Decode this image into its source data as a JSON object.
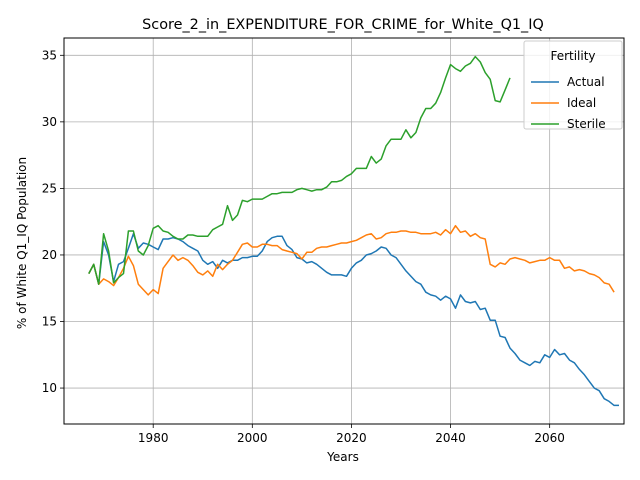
{
  "chart_data": {
    "type": "line",
    "title": "Score_2_in_EXPENDITURE_FOR_CRIME_for_White_Q1_IQ",
    "xlabel": "Years",
    "ylabel": "% of White Q1_IQ Population",
    "xlim": [
      1962,
      2075
    ],
    "ylim": [
      7.3,
      36.3
    ],
    "xticks": [
      1980,
      2000,
      2020,
      2040,
      2060
    ],
    "yticks": [
      10,
      15,
      20,
      25,
      30,
      35
    ],
    "grid": true,
    "legend": {
      "title": "Fertility",
      "position": "top-right"
    },
    "series": [
      {
        "name": "Actual",
        "color": "#1f77b4",
        "points": [
          [
            1967,
            18.6
          ],
          [
            1968,
            19.3
          ],
          [
            1969,
            17.8
          ],
          [
            1970,
            21.0
          ],
          [
            1971,
            20.0
          ],
          [
            1972,
            18.0
          ],
          [
            1973,
            19.3
          ],
          [
            1974,
            19.5
          ],
          [
            1975,
            20.5
          ],
          [
            1976,
            21.6
          ],
          [
            1977,
            20.5
          ],
          [
            1978,
            20.9
          ],
          [
            1979,
            20.8
          ],
          [
            1980,
            20.6
          ],
          [
            1981,
            20.4
          ],
          [
            1982,
            21.2
          ],
          [
            1983,
            21.2
          ],
          [
            1984,
            21.3
          ],
          [
            1985,
            21.2
          ],
          [
            1986,
            21.0
          ],
          [
            1987,
            20.7
          ],
          [
            1988,
            20.5
          ],
          [
            1989,
            20.3
          ],
          [
            1990,
            19.6
          ],
          [
            1991,
            19.3
          ],
          [
            1992,
            19.5
          ],
          [
            1993,
            19.0
          ],
          [
            1994,
            19.6
          ],
          [
            1995,
            19.4
          ],
          [
            1996,
            19.6
          ],
          [
            1997,
            19.6
          ],
          [
            1998,
            19.8
          ],
          [
            1999,
            19.8
          ],
          [
            2000,
            19.9
          ],
          [
            2001,
            19.9
          ],
          [
            2002,
            20.3
          ],
          [
            2003,
            21.0
          ],
          [
            2004,
            21.3
          ],
          [
            2005,
            21.4
          ],
          [
            2006,
            21.4
          ],
          [
            2007,
            20.7
          ],
          [
            2008,
            20.4
          ],
          [
            2009,
            19.8
          ],
          [
            2010,
            19.7
          ],
          [
            2011,
            19.4
          ],
          [
            2012,
            19.5
          ],
          [
            2013,
            19.3
          ],
          [
            2014,
            19.0
          ],
          [
            2015,
            18.7
          ],
          [
            2016,
            18.5
          ],
          [
            2017,
            18.5
          ],
          [
            2018,
            18.5
          ],
          [
            2019,
            18.4
          ],
          [
            2020,
            19.0
          ],
          [
            2021,
            19.4
          ],
          [
            2022,
            19.6
          ],
          [
            2023,
            20.0
          ],
          [
            2024,
            20.1
          ],
          [
            2025,
            20.3
          ],
          [
            2026,
            20.6
          ],
          [
            2027,
            20.5
          ],
          [
            2028,
            20.0
          ],
          [
            2029,
            19.8
          ],
          [
            2030,
            19.3
          ],
          [
            2031,
            18.8
          ],
          [
            2032,
            18.4
          ],
          [
            2033,
            18.0
          ],
          [
            2034,
            17.8
          ],
          [
            2035,
            17.2
          ],
          [
            2036,
            17.0
          ],
          [
            2037,
            16.9
          ],
          [
            2038,
            16.6
          ],
          [
            2039,
            16.9
          ],
          [
            2040,
            16.7
          ],
          [
            2041,
            16.0
          ],
          [
            2042,
            17.0
          ],
          [
            2043,
            16.5
          ],
          [
            2044,
            16.4
          ],
          [
            2045,
            16.5
          ],
          [
            2046,
            15.9
          ],
          [
            2047,
            16.0
          ],
          [
            2048,
            15.1
          ],
          [
            2049,
            15.1
          ],
          [
            2050,
            13.9
          ],
          [
            2051,
            13.8
          ],
          [
            2052,
            13.0
          ],
          [
            2053,
            12.6
          ],
          [
            2054,
            12.1
          ],
          [
            2055,
            11.9
          ],
          [
            2056,
            11.7
          ],
          [
            2057,
            12.0
          ],
          [
            2058,
            11.9
          ],
          [
            2059,
            12.5
          ],
          [
            2060,
            12.3
          ],
          [
            2061,
            12.9
          ],
          [
            2062,
            12.5
          ],
          [
            2063,
            12.6
          ],
          [
            2064,
            12.1
          ],
          [
            2065,
            11.9
          ],
          [
            2066,
            11.4
          ],
          [
            2067,
            11.0
          ],
          [
            2068,
            10.5
          ],
          [
            2069,
            10.0
          ],
          [
            2070,
            9.8
          ],
          [
            2071,
            9.2
          ],
          [
            2072,
            9.0
          ],
          [
            2073,
            8.7
          ],
          [
            2074,
            8.7
          ]
        ]
      },
      {
        "name": "Ideal",
        "color": "#ff7f0e",
        "points": [
          [
            1967,
            18.6
          ],
          [
            1968,
            19.3
          ],
          [
            1969,
            17.8
          ],
          [
            1970,
            18.2
          ],
          [
            1971,
            18.0
          ],
          [
            1972,
            17.7
          ],
          [
            1973,
            18.3
          ],
          [
            1974,
            19.0
          ],
          [
            1975,
            19.9
          ],
          [
            1976,
            19.2
          ],
          [
            1977,
            17.8
          ],
          [
            1978,
            17.4
          ],
          [
            1979,
            17.0
          ],
          [
            1980,
            17.4
          ],
          [
            1981,
            17.1
          ],
          [
            1982,
            19.0
          ],
          [
            1983,
            19.5
          ],
          [
            1984,
            20.0
          ],
          [
            1985,
            19.6
          ],
          [
            1986,
            19.8
          ],
          [
            1987,
            19.6
          ],
          [
            1988,
            19.2
          ],
          [
            1989,
            18.7
          ],
          [
            1990,
            18.5
          ],
          [
            1991,
            18.8
          ],
          [
            1992,
            18.4
          ],
          [
            1993,
            19.3
          ],
          [
            1994,
            18.9
          ],
          [
            1995,
            19.3
          ],
          [
            1996,
            19.6
          ],
          [
            1997,
            20.2
          ],
          [
            1998,
            20.8
          ],
          [
            1999,
            20.9
          ],
          [
            2000,
            20.6
          ],
          [
            2001,
            20.6
          ],
          [
            2002,
            20.8
          ],
          [
            2003,
            20.8
          ],
          [
            2004,
            20.7
          ],
          [
            2005,
            20.7
          ],
          [
            2006,
            20.4
          ],
          [
            2007,
            20.3
          ],
          [
            2008,
            20.2
          ],
          [
            2009,
            20.1
          ],
          [
            2010,
            19.7
          ],
          [
            2011,
            20.2
          ],
          [
            2012,
            20.2
          ],
          [
            2013,
            20.5
          ],
          [
            2014,
            20.6
          ],
          [
            2015,
            20.6
          ],
          [
            2016,
            20.7
          ],
          [
            2017,
            20.8
          ],
          [
            2018,
            20.9
          ],
          [
            2019,
            20.9
          ],
          [
            2020,
            21.0
          ],
          [
            2021,
            21.1
          ],
          [
            2022,
            21.3
          ],
          [
            2023,
            21.5
          ],
          [
            2024,
            21.6
          ],
          [
            2025,
            21.2
          ],
          [
            2026,
            21.3
          ],
          [
            2027,
            21.6
          ],
          [
            2028,
            21.7
          ],
          [
            2029,
            21.7
          ],
          [
            2030,
            21.8
          ],
          [
            2031,
            21.8
          ],
          [
            2032,
            21.7
          ],
          [
            2033,
            21.7
          ],
          [
            2034,
            21.6
          ],
          [
            2035,
            21.6
          ],
          [
            2036,
            21.6
          ],
          [
            2037,
            21.7
          ],
          [
            2038,
            21.5
          ],
          [
            2039,
            21.9
          ],
          [
            2040,
            21.6
          ],
          [
            2041,
            22.2
          ],
          [
            2042,
            21.7
          ],
          [
            2043,
            21.8
          ],
          [
            2044,
            21.4
          ],
          [
            2045,
            21.6
          ],
          [
            2046,
            21.3
          ],
          [
            2047,
            21.2
          ],
          [
            2048,
            19.3
          ],
          [
            2049,
            19.1
          ],
          [
            2050,
            19.4
          ],
          [
            2051,
            19.3
          ],
          [
            2052,
            19.7
          ],
          [
            2053,
            19.8
          ],
          [
            2054,
            19.7
          ],
          [
            2055,
            19.6
          ],
          [
            2056,
            19.4
          ],
          [
            2057,
            19.5
          ],
          [
            2058,
            19.6
          ],
          [
            2059,
            19.6
          ],
          [
            2060,
            19.8
          ],
          [
            2061,
            19.6
          ],
          [
            2062,
            19.6
          ],
          [
            2063,
            19.0
          ],
          [
            2064,
            19.1
          ],
          [
            2065,
            18.8
          ],
          [
            2066,
            18.9
          ],
          [
            2067,
            18.8
          ],
          [
            2068,
            18.6
          ],
          [
            2069,
            18.5
          ],
          [
            2070,
            18.3
          ],
          [
            2071,
            17.9
          ],
          [
            2072,
            17.8
          ],
          [
            2073,
            17.2
          ]
        ]
      },
      {
        "name": "Sterile",
        "color": "#2ca02c",
        "points": [
          [
            1967,
            18.6
          ],
          [
            1968,
            19.3
          ],
          [
            1969,
            17.8
          ],
          [
            1970,
            21.6
          ],
          [
            1971,
            20.3
          ],
          [
            1972,
            17.9
          ],
          [
            1973,
            18.3
          ],
          [
            1974,
            18.6
          ],
          [
            1975,
            21.8
          ],
          [
            1976,
            21.8
          ],
          [
            1977,
            20.3
          ],
          [
            1978,
            20.0
          ],
          [
            1979,
            20.7
          ],
          [
            1980,
            22.0
          ],
          [
            1981,
            22.2
          ],
          [
            1982,
            21.8
          ],
          [
            1983,
            21.7
          ],
          [
            1984,
            21.4
          ],
          [
            1985,
            21.2
          ],
          [
            1986,
            21.2
          ],
          [
            1987,
            21.5
          ],
          [
            1988,
            21.5
          ],
          [
            1989,
            21.4
          ],
          [
            1990,
            21.4
          ],
          [
            1991,
            21.4
          ],
          [
            1992,
            21.9
          ],
          [
            1993,
            22.1
          ],
          [
            1994,
            22.3
          ],
          [
            1995,
            23.7
          ],
          [
            1996,
            22.6
          ],
          [
            1997,
            23.0
          ],
          [
            1998,
            24.1
          ],
          [
            1999,
            24.0
          ],
          [
            2000,
            24.2
          ],
          [
            2001,
            24.2
          ],
          [
            2002,
            24.2
          ],
          [
            2003,
            24.4
          ],
          [
            2004,
            24.6
          ],
          [
            2005,
            24.6
          ],
          [
            2006,
            24.7
          ],
          [
            2007,
            24.7
          ],
          [
            2008,
            24.7
          ],
          [
            2009,
            24.9
          ],
          [
            2010,
            25.0
          ],
          [
            2011,
            24.9
          ],
          [
            2012,
            24.8
          ],
          [
            2013,
            24.9
          ],
          [
            2014,
            24.9
          ],
          [
            2015,
            25.1
          ],
          [
            2016,
            25.5
          ],
          [
            2017,
            25.5
          ],
          [
            2018,
            25.6
          ],
          [
            2019,
            25.9
          ],
          [
            2020,
            26.1
          ],
          [
            2021,
            26.5
          ],
          [
            2022,
            26.5
          ],
          [
            2023,
            26.5
          ],
          [
            2024,
            27.4
          ],
          [
            2025,
            26.9
          ],
          [
            2026,
            27.2
          ],
          [
            2027,
            28.2
          ],
          [
            2028,
            28.7
          ],
          [
            2029,
            28.7
          ],
          [
            2030,
            28.7
          ],
          [
            2031,
            29.4
          ],
          [
            2032,
            28.8
          ],
          [
            2033,
            29.2
          ],
          [
            2034,
            30.3
          ],
          [
            2035,
            31.0
          ],
          [
            2036,
            31.0
          ],
          [
            2037,
            31.4
          ],
          [
            2038,
            32.2
          ],
          [
            2039,
            33.3
          ],
          [
            2040,
            34.3
          ],
          [
            2041,
            34.0
          ],
          [
            2042,
            33.8
          ],
          [
            2043,
            34.2
          ],
          [
            2044,
            34.4
          ],
          [
            2045,
            34.9
          ],
          [
            2046,
            34.5
          ],
          [
            2047,
            33.7
          ],
          [
            2048,
            33.2
          ],
          [
            2049,
            31.6
          ],
          [
            2050,
            31.5
          ],
          [
            2051,
            32.4
          ],
          [
            2052,
            33.3
          ]
        ]
      }
    ]
  }
}
